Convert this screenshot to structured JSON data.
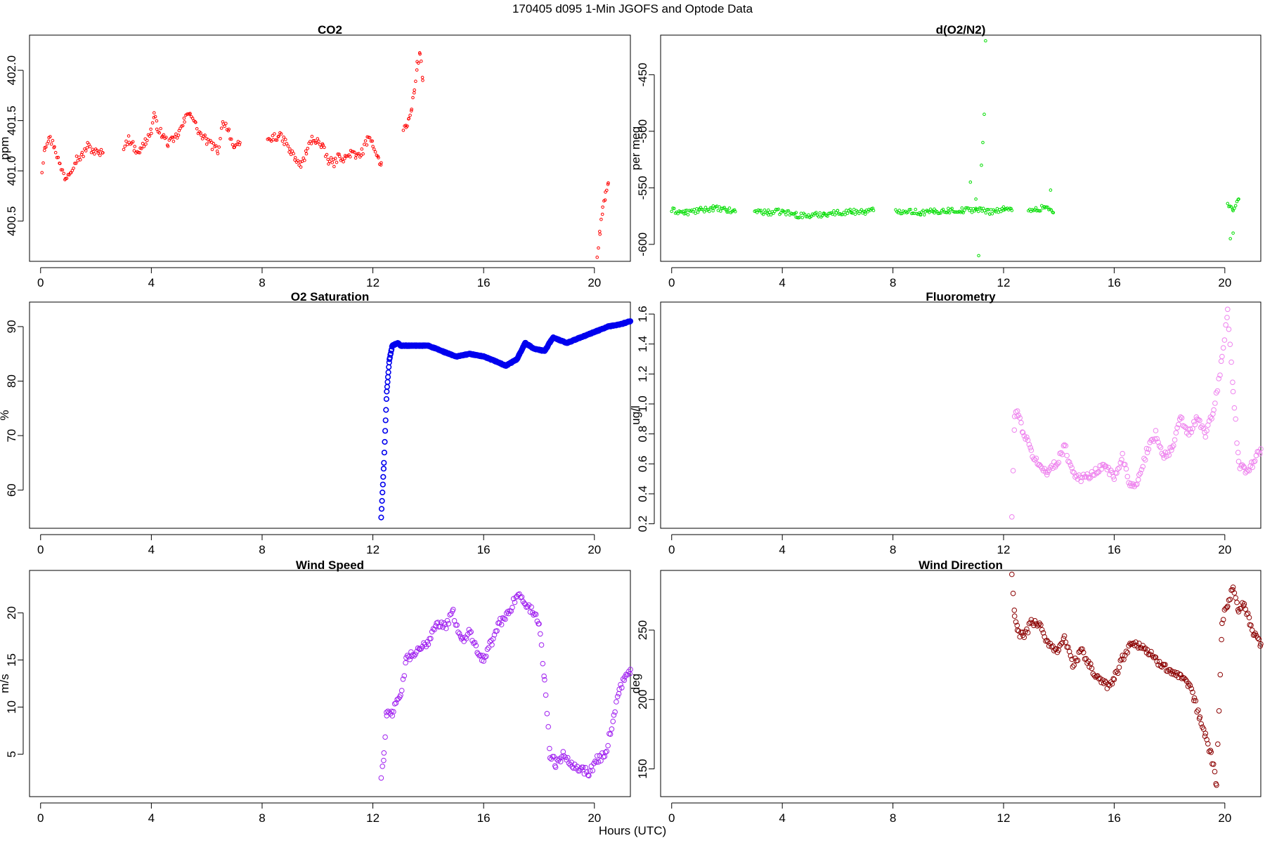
{
  "title": "170405   d095   1-Min  JGOFS and Optode Data",
  "xlabel": "Hours (UTC)",
  "chart_data": [
    {
      "type": "scatter",
      "title": "CO2",
      "ylabel": "ppm",
      "color": "#ff0000",
      "xlim": [
        -0.4,
        21.3
      ],
      "ylim": [
        400.1,
        402.35
      ],
      "xticks": [
        0,
        4,
        8,
        12,
        16,
        20
      ],
      "yticks": [
        400.5,
        401.0,
        401.5,
        402.0
      ],
      "xtick_labels": [
        "0",
        "4",
        "8",
        "12",
        "16",
        "20"
      ],
      "ytick_labels": [
        "400.5",
        "401.0",
        "401.5",
        "402.0"
      ],
      "segments": [
        {
          "x": [
            0.05,
            0.15,
            0.3,
            0.5,
            0.7,
            0.9,
            1.1,
            1.3,
            1.5,
            1.7,
            1.9,
            2.1,
            2.25
          ],
          "y": [
            401.0,
            401.25,
            401.33,
            401.25,
            401.05,
            400.93,
            401.02,
            401.12,
            401.15,
            401.25,
            401.2,
            401.17,
            401.18
          ]
        },
        {
          "x": [
            3.0,
            3.2,
            3.4,
            3.6,
            3.8,
            4.0,
            4.1,
            4.2,
            4.4,
            4.6,
            4.8,
            5.0,
            5.2,
            5.4,
            5.6,
            5.8,
            6.0,
            6.2,
            6.4,
            6.6,
            6.8,
            7.0,
            7.2
          ],
          "y": [
            401.25,
            401.32,
            401.22,
            401.2,
            401.3,
            401.4,
            401.55,
            401.45,
            401.35,
            401.28,
            401.3,
            401.38,
            401.5,
            401.6,
            401.45,
            401.35,
            401.3,
            401.25,
            401.2,
            401.5,
            401.4,
            401.2,
            401.28
          ]
        },
        {
          "x": [
            8.2,
            8.4,
            8.6,
            8.8,
            9.0,
            9.2,
            9.4,
            9.6,
            9.8,
            10.0,
            10.2,
            10.4,
            10.6,
            10.8,
            11.0,
            11.2,
            11.4,
            11.6,
            11.8,
            12.0,
            12.2,
            12.3
          ],
          "y": [
            401.3,
            401.33,
            401.35,
            401.3,
            401.2,
            401.12,
            401.05,
            401.18,
            401.32,
            401.3,
            401.22,
            401.1,
            401.08,
            401.15,
            401.12,
            401.18,
            401.14,
            401.18,
            401.3,
            401.28,
            401.12,
            401.08
          ]
        },
        {
          "x": [
            13.1,
            13.2,
            13.3,
            13.4,
            13.5,
            13.6,
            13.7,
            13.8
          ],
          "y": [
            401.4,
            401.45,
            401.5,
            401.62,
            401.8,
            402.05,
            402.18,
            401.9
          ]
        },
        {
          "x": [
            20.1,
            20.2,
            20.3,
            20.4,
            20.5
          ],
          "y": [
            400.15,
            400.4,
            400.6,
            400.75,
            400.88
          ]
        }
      ]
    },
    {
      "type": "scatter",
      "title": "d(O2/N2)",
      "ylabel": "per meg",
      "color": "#00dd00",
      "xlim": [
        -0.4,
        21.3
      ],
      "ylim": [
        -615,
        -415
      ],
      "xticks": [
        0,
        4,
        8,
        12,
        16,
        20
      ],
      "yticks": [
        -600,
        -550,
        -500,
        -450
      ],
      "xtick_labels": [
        "0",
        "4",
        "8",
        "12",
        "16",
        "20"
      ],
      "ytick_labels": [
        "-600",
        "-550",
        "-500",
        "-450"
      ],
      "segments": [
        {
          "x": [
            0.0,
            0.5,
            1.0,
            1.5,
            2.0,
            2.3
          ],
          "y": [
            -570,
            -572,
            -570,
            -568,
            -570,
            -571
          ]
        },
        {
          "x": [
            3.0,
            3.5,
            4.0,
            4.5,
            5.0,
            5.5,
            6.0,
            6.5,
            7.0,
            7.3
          ],
          "y": [
            -570,
            -572,
            -571,
            -574,
            -575,
            -573,
            -572,
            -571,
            -571,
            -570
          ]
        },
        {
          "x": [
            8.1,
            8.5,
            9.0,
            9.5,
            10.0,
            10.5,
            11.0,
            11.5,
            12.0,
            12.3
          ],
          "y": [
            -571,
            -570,
            -572,
            -571,
            -570,
            -570,
            -569,
            -571,
            -569,
            -570
          ]
        },
        {
          "x": [
            12.9,
            13.2,
            13.5,
            13.8
          ],
          "y": [
            -568,
            -570,
            -566,
            -572
          ]
        },
        {
          "x": [
            20.1,
            20.3,
            20.5
          ],
          "y": [
            -565,
            -570,
            -560
          ]
        }
      ],
      "outliers": {
        "x": [
          10.8,
          11.0,
          11.2,
          11.25,
          11.3,
          11.35,
          11.1,
          13.7,
          20.3,
          20.2
        ],
        "y": [
          -545,
          -560,
          -530,
          -510,
          -485,
          -420,
          -610,
          -552,
          -590,
          -595
        ]
      }
    },
    {
      "type": "scatter",
      "title": "O2 Saturation",
      "ylabel": "%",
      "color": "#0000ee",
      "xlim": [
        -0.4,
        21.3
      ],
      "ylim": [
        53,
        94.5
      ],
      "xticks": [
        0,
        4,
        8,
        12,
        16,
        20
      ],
      "yticks": [
        60,
        70,
        80,
        90
      ],
      "xtick_labels": [
        "0",
        "4",
        "8",
        "12",
        "16",
        "20"
      ],
      "ytick_labels": [
        "60",
        "70",
        "80",
        "90"
      ],
      "segments": [
        {
          "x": [
            12.3,
            12.4,
            12.5,
            12.6,
            12.7,
            12.9,
            13.0,
            13.5,
            14.0,
            14.5,
            15.0,
            15.5,
            16.0,
            16.5,
            16.8,
            17.2,
            17.5,
            17.8,
            18.2,
            18.5,
            19.0,
            19.5,
            20.0,
            20.5,
            21.0,
            21.3
          ],
          "y": [
            55,
            65,
            78,
            84,
            86.5,
            87,
            86.5,
            86.5,
            86.5,
            85.5,
            84.5,
            85,
            84.5,
            83.5,
            82.8,
            84,
            87,
            86,
            85.5,
            88,
            87,
            88,
            89,
            90,
            90.5,
            91
          ]
        }
      ]
    },
    {
      "type": "scatter",
      "title": "Fluorometry",
      "ylabel": "ug/l",
      "color": "#ee82ee",
      "xlim": [
        -0.4,
        21.3
      ],
      "ylim": [
        0.17,
        1.68
      ],
      "xticks": [
        0,
        4,
        8,
        12,
        16,
        20
      ],
      "yticks": [
        0.2,
        0.4,
        0.6,
        0.8,
        1.0,
        1.2,
        1.4,
        1.6
      ],
      "xtick_labels": [
        "0",
        "4",
        "8",
        "12",
        "16",
        "20"
      ],
      "ytick_labels": [
        "0.2",
        "0.4",
        "0.6",
        "0.8",
        "1.0",
        "1.2",
        "1.4",
        "1.6"
      ],
      "segments": [
        {
          "x": [
            12.3,
            12.4,
            12.5,
            12.7,
            13.0,
            13.3,
            13.6,
            13.9,
            14.2,
            14.5,
            14.8,
            15.1,
            15.4,
            15.7,
            16.0,
            16.3,
            16.6,
            16.9,
            17.2,
            17.5,
            17.8,
            18.1,
            18.4,
            18.7,
            19.0,
            19.3,
            19.6,
            19.9,
            20.1,
            20.3,
            20.5,
            20.7,
            21.0,
            21.3
          ],
          "y": [
            0.25,
            0.9,
            0.95,
            0.82,
            0.68,
            0.58,
            0.55,
            0.6,
            0.72,
            0.55,
            0.5,
            0.52,
            0.55,
            0.6,
            0.5,
            0.65,
            0.45,
            0.5,
            0.7,
            0.8,
            0.65,
            0.7,
            0.9,
            0.8,
            0.9,
            0.8,
            0.95,
            1.3,
            1.62,
            1.1,
            0.6,
            0.55,
            0.6,
            0.7
          ]
        }
      ]
    },
    {
      "type": "scatter",
      "title": "Wind Speed",
      "ylabel": "m/s",
      "color": "#a020f0",
      "xlim": [
        -0.4,
        21.3
      ],
      "ylim": [
        0.5,
        24.5
      ],
      "xticks": [
        0,
        4,
        8,
        12,
        16,
        20
      ],
      "yticks": [
        5,
        10,
        15,
        20
      ],
      "xtick_labels": [
        "0",
        "4",
        "8",
        "12",
        "16",
        "20"
      ],
      "ytick_labels": [
        "5",
        "10",
        "15",
        "20"
      ],
      "segments": [
        {
          "x": [
            12.3,
            12.4,
            12.5,
            12.7,
            13.0,
            13.2,
            13.4,
            13.7,
            14.0,
            14.3,
            14.6,
            14.9,
            15.2,
            15.5,
            15.8,
            16.0,
            16.3,
            16.6,
            16.9,
            17.2,
            17.5,
            17.8,
            18.0,
            18.2,
            18.4,
            18.6,
            18.9,
            19.2,
            19.5,
            19.8,
            20.1,
            20.4,
            20.7,
            20.9,
            21.1,
            21.3
          ],
          "y": [
            2.5,
            5,
            9.5,
            9.5,
            11,
            15,
            15.5,
            16,
            17,
            19,
            18.5,
            20,
            17,
            18,
            16,
            15,
            17,
            19,
            20,
            22,
            21,
            20,
            19,
            13,
            5,
            4,
            5,
            4,
            3.5,
            3,
            4.5,
            5,
            9,
            12,
            13,
            14
          ]
        }
      ]
    },
    {
      "type": "scatter",
      "title": "Wind Direction",
      "ylabel": "deg",
      "color": "#8b0000",
      "xlim": [
        -0.4,
        21.3
      ],
      "ylim": [
        130,
        293
      ],
      "xticks": [
        0,
        4,
        8,
        12,
        16,
        20
      ],
      "yticks": [
        150,
        200,
        250
      ],
      "xtick_labels": [
        "0",
        "4",
        "8",
        "12",
        "16",
        "20"
      ],
      "ytick_labels": [
        "150",
        "200",
        "250"
      ],
      "segments": [
        {
          "x": [
            12.3,
            12.4,
            12.5,
            12.7,
            13.0,
            13.3,
            13.6,
            13.9,
            14.2,
            14.5,
            14.8,
            15.1,
            15.4,
            15.7,
            16.0,
            16.3,
            16.6,
            16.9,
            17.2,
            17.5,
            17.8,
            18.1,
            18.4,
            18.7,
            18.9,
            19.1,
            19.3,
            19.5,
            19.7,
            19.9,
            20.1,
            20.3,
            20.5,
            20.7,
            20.9,
            21.1,
            21.3
          ],
          "y": [
            290,
            260,
            250,
            245,
            255,
            255,
            240,
            235,
            245,
            225,
            235,
            225,
            215,
            210,
            215,
            230,
            240,
            240,
            235,
            228,
            225,
            220,
            215,
            210,
            200,
            185,
            175,
            160,
            140,
            255,
            270,
            280,
            265,
            270,
            255,
            245,
            240
          ]
        }
      ]
    }
  ]
}
